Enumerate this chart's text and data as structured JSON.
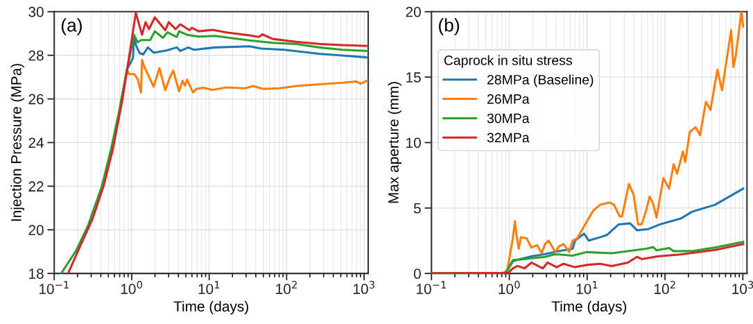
{
  "chart_data": [
    {
      "type": "line",
      "xlabel": "Time (days)",
      "ylabel": "Injection Pressure (MPa)",
      "log": "x",
      "grid": true,
      "annotations": [
        "(a)"
      ],
      "xlim": [
        0.1,
        1130
      ],
      "xticks": [
        {
          "value": 0.1,
          "label": "10$^{−1}$"
        },
        {
          "value": 1,
          "label": "10$^{0}$"
        },
        {
          "value": 10,
          "label": "10$^{1}$"
        },
        {
          "value": 100,
          "label": "10$^{2}$"
        },
        {
          "value": 1000,
          "label": "10$^{3}$"
        }
      ],
      "ylim": [
        18,
        30
      ],
      "yticks": [
        18,
        20,
        22,
        24,
        26,
        28,
        30
      ],
      "series": [
        {
          "color": "#1f77b4",
          "x": [
            0.71,
            0.871,
            1.04,
            1.07,
            1.15,
            1.27,
            1.41,
            1.62,
            1.92,
            2.81,
            3.82,
            4.24,
            5.38,
            6.4,
            11.9,
            33.3,
            47,
            93.3,
            263,
            1110
          ],
          "values": [
            25.66,
            27.35,
            27.88,
            28.78,
            28.41,
            28.1,
            28.04,
            28.36,
            28.12,
            28.22,
            28.36,
            28.2,
            28.36,
            28.25,
            28.36,
            28.41,
            28.31,
            28.25,
            28.07,
            27.9
          ]
        },
        {
          "color": "#ff7f0e",
          "x": [
            0.71,
            0.871,
            0.92,
            1.07,
            1.19,
            1.32,
            1.36,
            1.46,
            1.92,
            2.28,
            2.71,
            3.11,
            3.44,
            4.09,
            4.54,
            4.86,
            5.2,
            6.18,
            6.85,
            8.41,
            11.1,
            16.7,
            29,
            36.9,
            50.2,
            81.3,
            132,
            263,
            525,
            787,
            902,
            1110
          ],
          "values": [
            25.66,
            27.35,
            27.14,
            27.14,
            26.93,
            26.3,
            27.78,
            27.46,
            26.56,
            27.41,
            26.4,
            26.98,
            27.3,
            26.35,
            26.83,
            26.61,
            26.88,
            26.3,
            26.46,
            26.51,
            26.42,
            26.53,
            26.49,
            26.59,
            26.46,
            26.49,
            26.59,
            26.67,
            26.74,
            26.8,
            26.7,
            26.85
          ]
        },
        {
          "color": "#2ca02c",
          "x": [
            0.123,
            0.192,
            0.271,
            0.409,
            0.538,
            0.71,
            0.871,
            1.07,
            1.19,
            1.32,
            1.73,
            1.99,
            2.53,
            2.9,
            3.82,
            4.09,
            5.2,
            7.35,
            11.9,
            33.1,
            66.1,
            132,
            263,
            525,
            1110
          ],
          "values": [
            18.0,
            19.05,
            20.16,
            21.96,
            23.65,
            25.66,
            27.35,
            28.94,
            28.6,
            28.7,
            28.7,
            29.1,
            28.8,
            29.05,
            28.84,
            29.1,
            28.94,
            28.86,
            28.89,
            28.68,
            28.57,
            28.52,
            28.36,
            28.25,
            28.2
          ]
        },
        {
          "color": "#d62728",
          "x": [
            0.151,
            0.22,
            0.311,
            0.439,
            0.577,
            0.76,
            0.933,
            1.13,
            1.36,
            1.51,
            1.67,
            1.99,
            2.71,
            3.01,
            3.69,
            4.24,
            5.57,
            5.97,
            7.35,
            11.1,
            16.7,
            33.3,
            43.9,
            48.6,
            66.1,
            132,
            263,
            525,
            1110
          ],
          "values": [
            18.0,
            19.31,
            20.48,
            22.07,
            23.76,
            25.98,
            27.99,
            29.95,
            28.94,
            29.52,
            29.2,
            29.74,
            29.15,
            29.52,
            29.2,
            29.42,
            29.15,
            29.26,
            29.1,
            29.17,
            29.05,
            28.91,
            28.84,
            28.96,
            28.75,
            28.62,
            28.52,
            28.47,
            28.43
          ]
        }
      ]
    },
    {
      "type": "line",
      "xlabel": "Time (days)",
      "ylabel": "Max aperture (mm)",
      "log": "x",
      "grid": true,
      "annotations": [
        "(b)"
      ],
      "legend": "top left",
      "legend_title": "Caprock in situ stress",
      "xlim": [
        0.1,
        1130
      ],
      "xticks": [
        {
          "value": 0.1,
          "label": "10$^{−1}$"
        },
        {
          "value": 1,
          "label": "10$^{0}$"
        },
        {
          "value": 10,
          "label": "10$^{1}$"
        },
        {
          "value": 100,
          "label": "10$^{2}$"
        },
        {
          "value": 1000,
          "label": "10$^{3}$"
        }
      ],
      "ylim": [
        0,
        20
      ],
      "yticks": [
        0,
        5,
        10,
        15,
        20
      ],
      "series": [
        {
          "name": "28MPa (Baseline)",
          "color": "#1f77b4",
          "x": [
            0.1,
            0.851,
            0.94,
            1.11,
            1.37,
            1.92,
            2.88,
            4.34,
            6.52,
            6.98,
            9.16,
            10.5,
            14.7,
            18.1,
            25.4,
            35.6,
            43.7,
            61.4,
            86.1,
            159,
            223,
            440,
            1010
          ],
          "values": [
            0,
            0,
            0.2,
            0.92,
            1.1,
            1.31,
            1.48,
            1.71,
            1.89,
            2.51,
            3.04,
            2.51,
            2.77,
            2.95,
            3.75,
            3.83,
            3.3,
            3.39,
            3.75,
            4.19,
            4.72,
            5.25,
            6.48
          ]
        },
        {
          "name": "26MPa",
          "color": "#ff7f0e",
          "x": [
            0.1,
            0.794,
            0.94,
            1.11,
            1.18,
            1.23,
            1.32,
            1.41,
            1.67,
            1.92,
            2.28,
            2.61,
            2.88,
            3.19,
            3.92,
            4.34,
            4.97,
            5.89,
            6.52,
            7.46,
            9.79,
            12.0,
            14.7,
            19.3,
            22.1,
            26.2,
            28.1,
            34.4,
            39.4,
            45.2,
            50.1,
            57.3,
            63.4,
            70.3,
            77.8,
            95.3,
            113,
            129,
            143,
            170,
            182,
            208,
            247,
            282,
            335,
            384,
            471,
            540,
            708,
            757,
            811,
            959,
            1010
          ],
          "values": [
            0,
            0,
            0.2,
            2.69,
            4.0,
            3.04,
            1.89,
            2.77,
            2.69,
            1.98,
            2.16,
            1.54,
            2.24,
            2.51,
            1.63,
            2.07,
            2.24,
            1.63,
            2.51,
            2.69,
            3.92,
            4.81,
            5.25,
            5.42,
            5.25,
            4.36,
            4.36,
            6.84,
            6.04,
            3.75,
            3.75,
            4.81,
            5.87,
            5.34,
            4.28,
            7.28,
            6.48,
            8.34,
            7.63,
            9.31,
            8.52,
            10.81,
            11.17,
            10.55,
            13.11,
            12.49,
            15.58,
            13.99,
            18.59,
            15.76,
            16.64,
            20.0,
            18.85
          ]
        },
        {
          "name": "30MPa",
          "color": "#2ca02c",
          "x": [
            0.1,
            0.871,
            0.973,
            1.11,
            1.57,
            2.88,
            3.78,
            4.34,
            6.52,
            9.79,
            20.7,
            57.3,
            70.3,
            77.8,
            113,
            129,
            223,
            440,
            1010
          ],
          "values": [
            0,
            0,
            0.39,
            1.01,
            1.1,
            1.27,
            1.45,
            1.45,
            1.36,
            1.63,
            1.54,
            1.89,
            2.01,
            1.77,
            1.94,
            1.7,
            1.71,
            1.98,
            2.42
          ]
        },
        {
          "name": "32MPa",
          "color": "#d62728",
          "x": [
            0.1,
            0.973,
            1.11,
            1.28,
            1.57,
            1.92,
            2.7,
            3.09,
            4.06,
            4.97,
            6.98,
            9.79,
            14.7,
            20.7,
            33.3,
            43.7,
            50.1,
            80.5,
            159,
            440,
            1010
          ],
          "values": [
            0,
            0.04,
            0.39,
            0.57,
            0.39,
            0.83,
            0.39,
            0.83,
            0.48,
            0.74,
            0.48,
            0.65,
            0.74,
            0.57,
            0.83,
            1.27,
            1.1,
            1.31,
            1.45,
            1.8,
            2.24
          ]
        }
      ]
    }
  ]
}
